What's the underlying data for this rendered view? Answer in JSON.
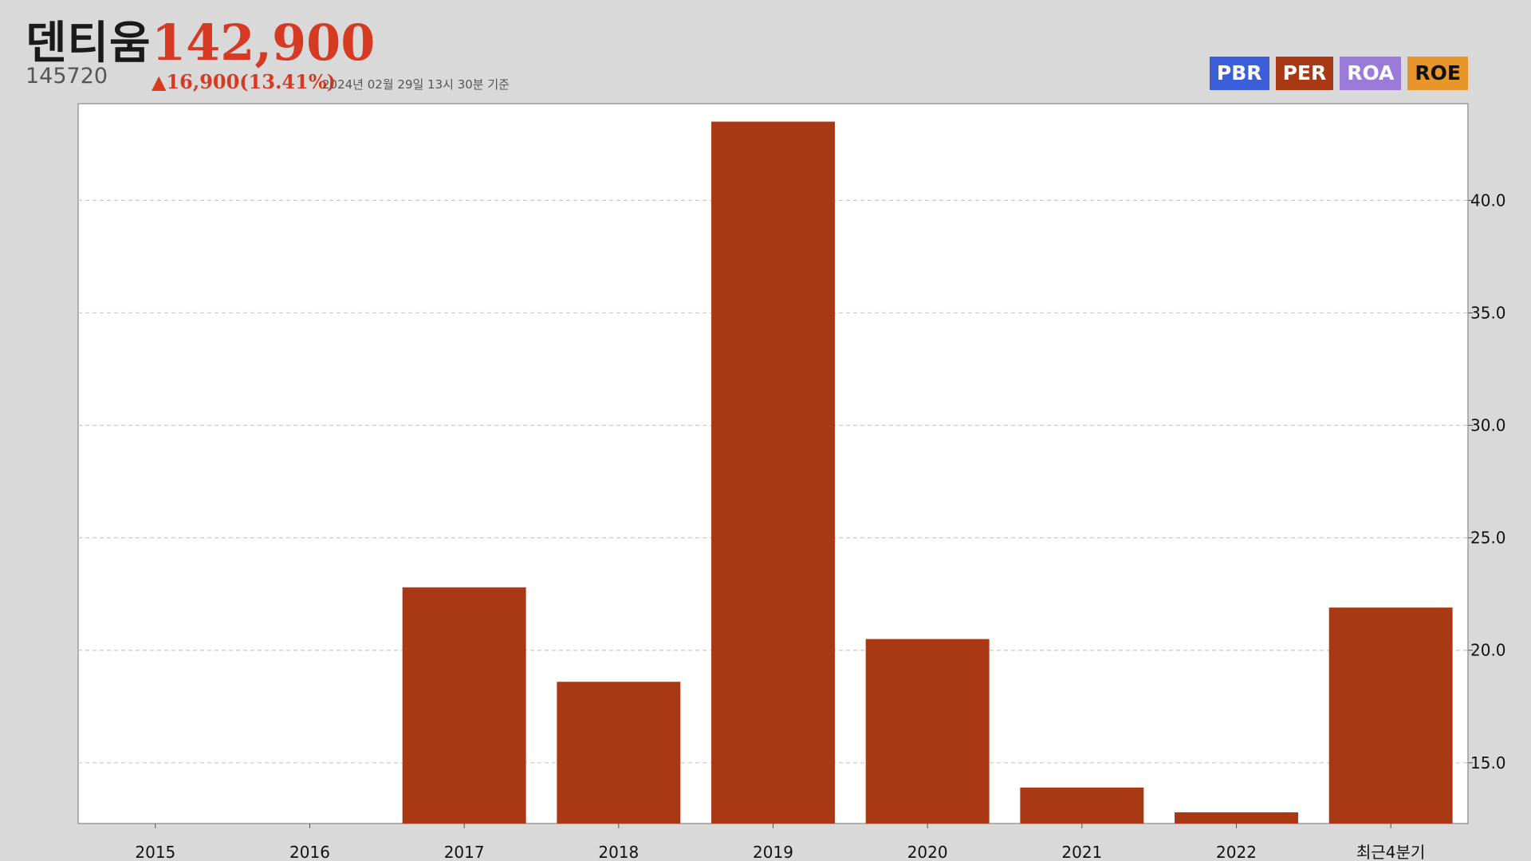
{
  "header": {
    "name": "덴티움",
    "price": "142,900",
    "code": "145720",
    "change": "▲16,900(13.41%)",
    "as_of": "2024년 02월 29일 13시 30분 기준"
  },
  "legend": [
    {
      "label": "PBR",
      "color": "#3b5fd9"
    },
    {
      "label": "PER",
      "color": "#a93915"
    },
    {
      "label": "ROA",
      "color": "#9b7bd9"
    },
    {
      "label": "ROE",
      "color": "#e8952a"
    }
  ],
  "chart_data": {
    "type": "bar",
    "categories": [
      "2015",
      "2016",
      "2017",
      "2018",
      "2019",
      "2020",
      "2021",
      "2022",
      "최근4분기"
    ],
    "series": [
      {
        "name": "PER",
        "color": "#a93915",
        "values": [
          null,
          null,
          22.8,
          18.6,
          43.5,
          20.5,
          13.9,
          12.8,
          21.9
        ]
      }
    ],
    "ylim": [
      12.3,
      44.3
    ],
    "yticks": [
      15.0,
      20.0,
      25.0,
      30.0,
      35.0,
      40.0
    ],
    "ytick_labels": [
      "15.0",
      "20.0",
      "25.0",
      "30.0",
      "35.0",
      "40.0"
    ],
    "y_axis_side": "right",
    "grid": "horizontal-dashed",
    "title": "",
    "xlabel": "",
    "ylabel": ""
  }
}
